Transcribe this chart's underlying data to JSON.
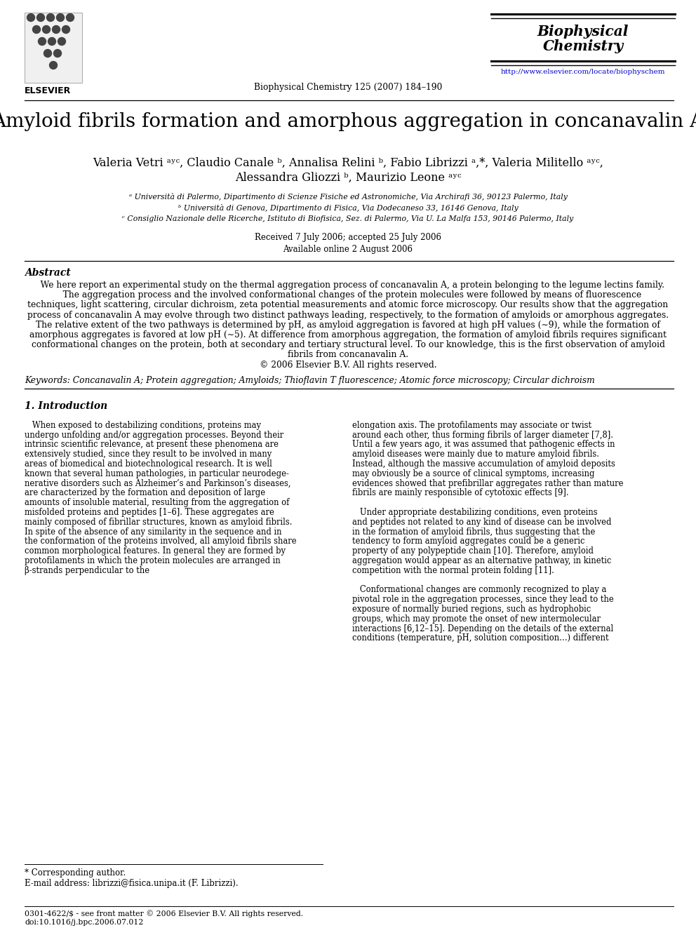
{
  "title": "Amyloid fibrils formation and amorphous aggregation in concanavalin A",
  "authors_line1": "Valeria Vetri ᵃʸᶜ, Claudio Canale ᵇ, Annalisa Relini ᵇ, Fabio Librizzi ᵃ,*, Valeria Militello ᵃʸᶜ,",
  "authors_line2": "Alessandra Gliozzi ᵇ, Maurizio Leone ᵃʸᶜ",
  "affil_a": "ᵃ Università di Palermo, Dipartimento di Scienze Fisiche ed Astronomiche, Via Archirafi 36, 90123 Palermo, Italy",
  "affil_b": "ᵇ Università di Genova, Dipartimento di Fisica, Via Dodecaneso 33, 16146 Genova, Italy",
  "affil_c": "ᶜ Consiglio Nazionale delle Ricerche, Istituto di Biofisica, Sez. di Palermo, Via U. La Malfa 153, 90146 Palermo, Italy",
  "received": "Received 7 July 2006; accepted 25 July 2006",
  "available": "Available online 2 August 2006",
  "journal_header": "Biophysical Chemistry 125 (2007) 184–190",
  "journal_name_line1": "Biophysical",
  "journal_name_line2": "Chemistry",
  "url": "http://www.elsevier.com/locate/biophyschem",
  "abstract_title": "Abstract",
  "abstract_line1": "   We here report an experimental study on the thermal aggregation process of concanavalin A, a protein belonging to the legume lectins family.",
  "abstract_line2": "   The aggregation process and the involved conformational changes of the protein molecules were followed by means of fluorescence",
  "abstract_line3": "techniques, light scattering, circular dichroism, zeta potential measurements and atomic force microscopy. Our results show that the aggregation",
  "abstract_line4": "process of concanavalin A may evolve through two distinct pathways leading, respectively, to the formation of amyloids or amorphous aggregates.",
  "abstract_line5": "The relative extent of the two pathways is determined by pH, as amyloid aggregation is favored at high pH values (∼9), while the formation of",
  "abstract_line6": "amorphous aggregates is favored at low pH (∼5). At difference from amorphous aggregation, the formation of amyloid fibrils requires significant",
  "abstract_line7": "conformational changes on the protein, both at secondary and tertiary structural level. To our knowledge, this is the first observation of amyloid",
  "abstract_line8": "fibrils from concanavalin A.",
  "abstract_copyright": "© 2006 Elsevier B.V. All rights reserved.",
  "keywords": "Keywords: Concanavalin A; Protein aggregation; Amyloids; Thioflavin T fluorescence; Atomic force microscopy; Circular dichroism",
  "section1_title": "1. Introduction",
  "intro_col1_lines": [
    "   When exposed to destabilizing conditions, proteins may",
    "undergo unfolding and/or aggregation processes. Beyond their",
    "intrinsic scientific relevance, at present these phenomena are",
    "extensively studied, since they result to be involved in many",
    "areas of biomedical and biotechnological research. It is well",
    "known that several human pathologies, in particular neurodege-",
    "nerative disorders such as Alzheimer’s and Parkinson’s diseases,",
    "are characterized by the formation and deposition of large",
    "amounts of insoluble material, resulting from the aggregation of",
    "misfolded proteins and peptides [1–6]. These aggregates are",
    "mainly composed of fibrillar structures, known as amyloid fibrils.",
    "In spite of the absence of any similarity in the sequence and in",
    "the conformation of the proteins involved, all amyloid fibrils share",
    "common morphological features. In general they are formed by",
    "protofilaments in which the protein molecules are arranged in",
    "β-strands perpendicular to the"
  ],
  "intro_col2_lines": [
    "elongation axis. The protofilaments may associate or twist",
    "around each other, thus forming fibrils of larger diameter [7,8].",
    "Until a few years ago, it was assumed that pathogenic effects in",
    "amyloid diseases were mainly due to mature amyloid fibrils.",
    "Instead, although the massive accumulation of amyloid deposits",
    "may obviously be a source of clinical symptoms, increasing",
    "evidences showed that prefibrillar aggregates rather than mature",
    "fibrils are mainly responsible of cytotoxic effects [9].",
    "",
    "   Under appropriate destabilizing conditions, even proteins",
    "and peptides not related to any kind of disease can be involved",
    "in the formation of amyloid fibrils, thus suggesting that the",
    "tendency to form amyloid aggregates could be a generic",
    "property of any polypeptide chain [10]. Therefore, amyloid",
    "aggregation would appear as an alternative pathway, in kinetic",
    "competition with the normal protein folding [11].",
    "",
    "   Conformational changes are commonly recognized to play a",
    "pivotal role in the aggregation processes, since they lead to the",
    "exposure of normally buried regions, such as hydrophobic",
    "groups, which may promote the onset of new intermolecular",
    "interactions [6,12–15]. Depending on the details of the external",
    "conditions (temperature, pH, solution composition…) different"
  ],
  "footnote_star": "* Corresponding author.",
  "footnote_email": "E-mail address: librizzi@fisica.unipa.it (F. Librizzi).",
  "footer_issn": "0301-4622/$ - see front matter © 2006 Elsevier B.V. All rights reserved.",
  "footer_doi": "doi:10.1016/j.bpc.2006.07.012",
  "bg_color": "#ffffff",
  "text_color": "#000000",
  "link_color": "#0000cc"
}
